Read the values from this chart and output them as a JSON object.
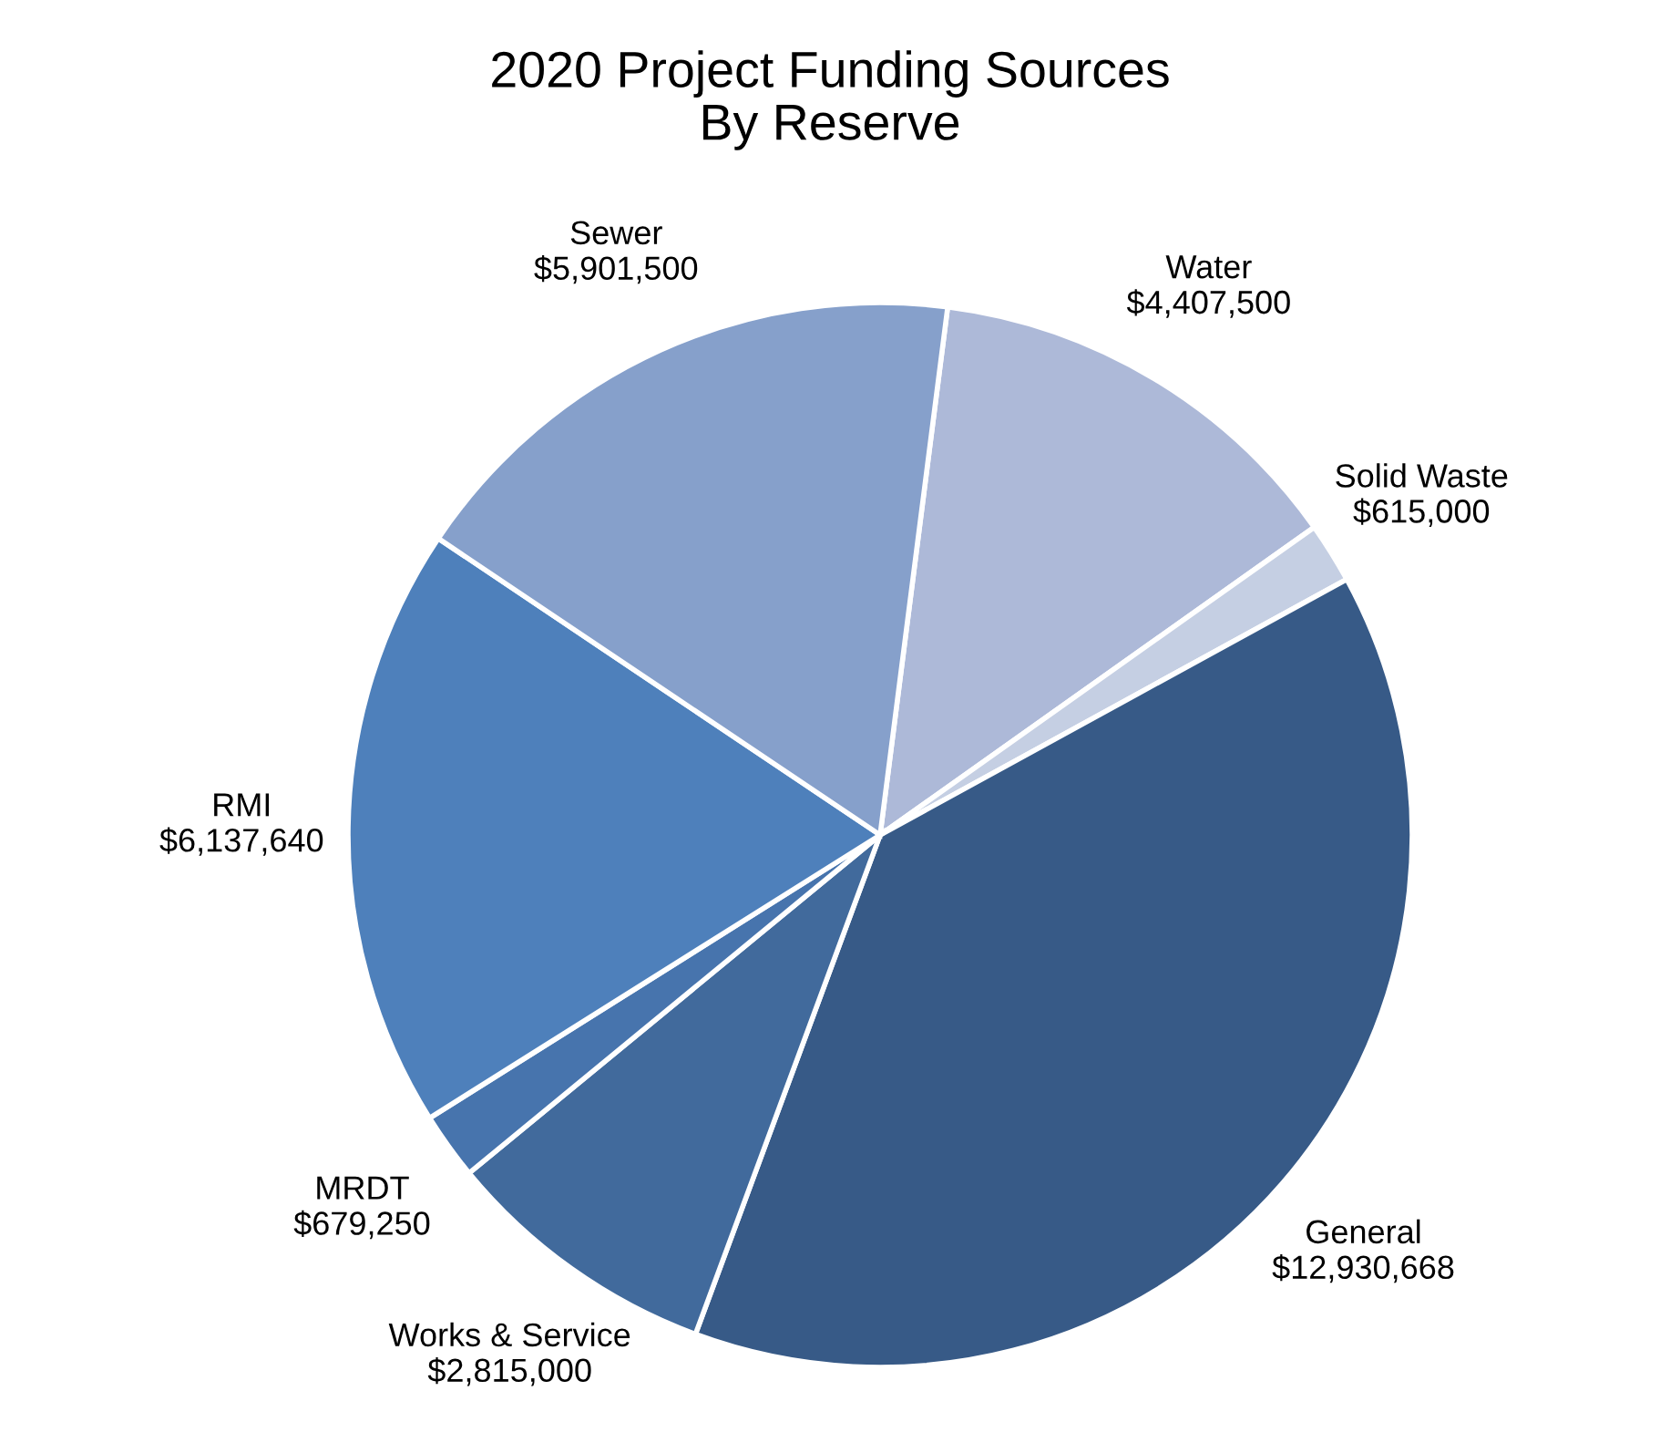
{
  "chart_data": {
    "type": "pie",
    "title": "2020 Project Funding Sources\nBy Reserve",
    "categories": [
      "Water",
      "Solid Waste",
      "General",
      "Works & Service",
      "MRDT",
      "RMI",
      "Sewer"
    ],
    "values": [
      4407500,
      615000,
      12930668,
      2815000,
      679250,
      6137640,
      5901500
    ],
    "value_labels": [
      "$4,407,500",
      "$615,000",
      "$12,930,668",
      "$2,815,000",
      "$679,250",
      "$6,137,640",
      "$5,901,500"
    ],
    "colors": [
      "#adb9d8",
      "#c5cfe3",
      "#375a87",
      "#416a9c",
      "#4774ad",
      "#4e80bb",
      "#86a0cb"
    ],
    "legend": false
  }
}
